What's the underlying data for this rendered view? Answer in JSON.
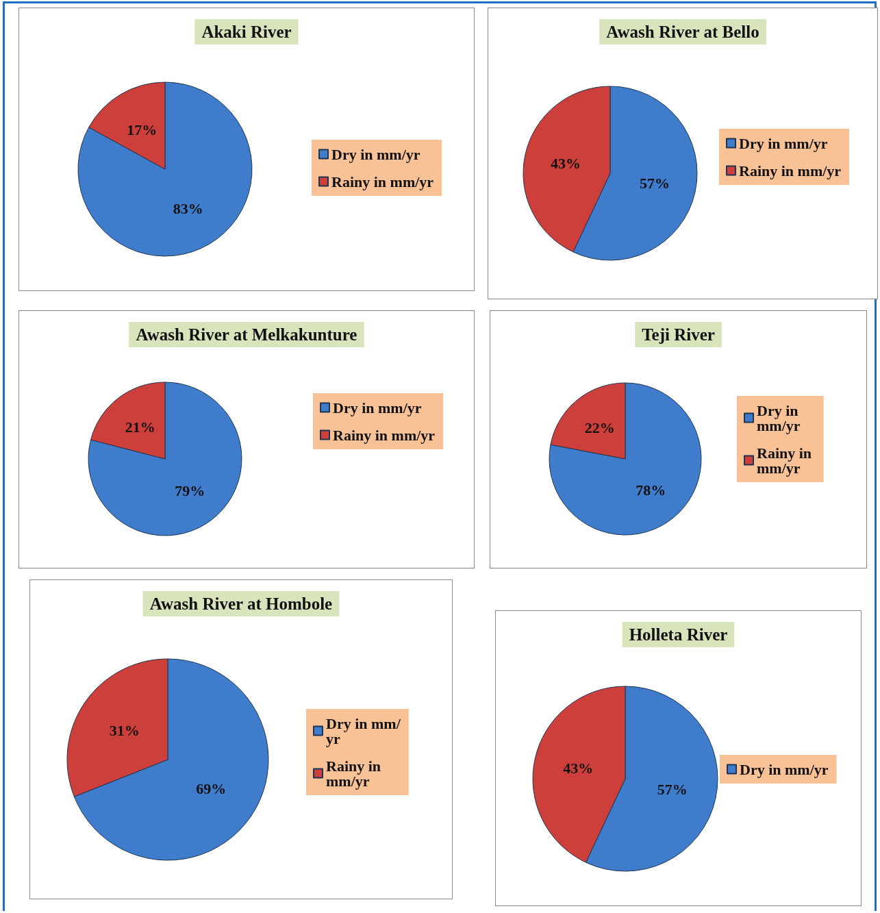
{
  "chart_data": [
    {
      "type": "pie",
      "title": "Akaki River",
      "categories": [
        "Dry in mm/yr",
        "Rainy in mm/yr"
      ],
      "values": [
        83,
        17
      ],
      "value_labels": [
        "83%",
        "17%"
      ],
      "colors": [
        "#3f7ccc",
        "#cc3f3a"
      ],
      "legend": "right"
    },
    {
      "type": "pie",
      "title": "Awash River at Bello",
      "categories": [
        "Dry in mm/yr",
        "Rainy in mm/yr"
      ],
      "values": [
        57,
        43
      ],
      "value_labels": [
        "57%",
        "43%"
      ],
      "colors": [
        "#3f7ccc",
        "#cc3f3a"
      ],
      "legend": "top right"
    },
    {
      "type": "pie",
      "title": "Awash River at Melkakunture",
      "categories": [
        "Dry in mm/yr",
        "Rainy in mm/yr"
      ],
      "values": [
        79,
        21
      ],
      "value_labels": [
        "79%",
        "21%"
      ],
      "colors": [
        "#3f7ccc",
        "#cc3f3a"
      ],
      "legend": "right"
    },
    {
      "type": "pie",
      "title": "Teji River",
      "categories": [
        "Dry in mm/yr",
        "Rainy in mm/yr"
      ],
      "values": [
        78,
        22
      ],
      "value_labels": [
        "78%",
        "22%"
      ],
      "colors": [
        "#3f7ccc",
        "#cc3f3a"
      ],
      "legend": "right"
    },
    {
      "type": "pie",
      "title": "Awash River at Hombole",
      "categories": [
        "Dry in mm/yr",
        "Rainy in mm/yr"
      ],
      "values": [
        69,
        31
      ],
      "value_labels": [
        "69%",
        "31%"
      ],
      "colors": [
        "#3f7ccc",
        "#cc3f3a"
      ],
      "legend": "right"
    },
    {
      "type": "pie",
      "title": "Holleta River",
      "categories": [
        "Dry in mm/yr",
        null
      ],
      "values": [
        57,
        43
      ],
      "value_labels": [
        "57%",
        "43%"
      ],
      "colors": [
        "#3f7ccc",
        "#cc3f3a"
      ],
      "legend": "right"
    }
  ]
}
